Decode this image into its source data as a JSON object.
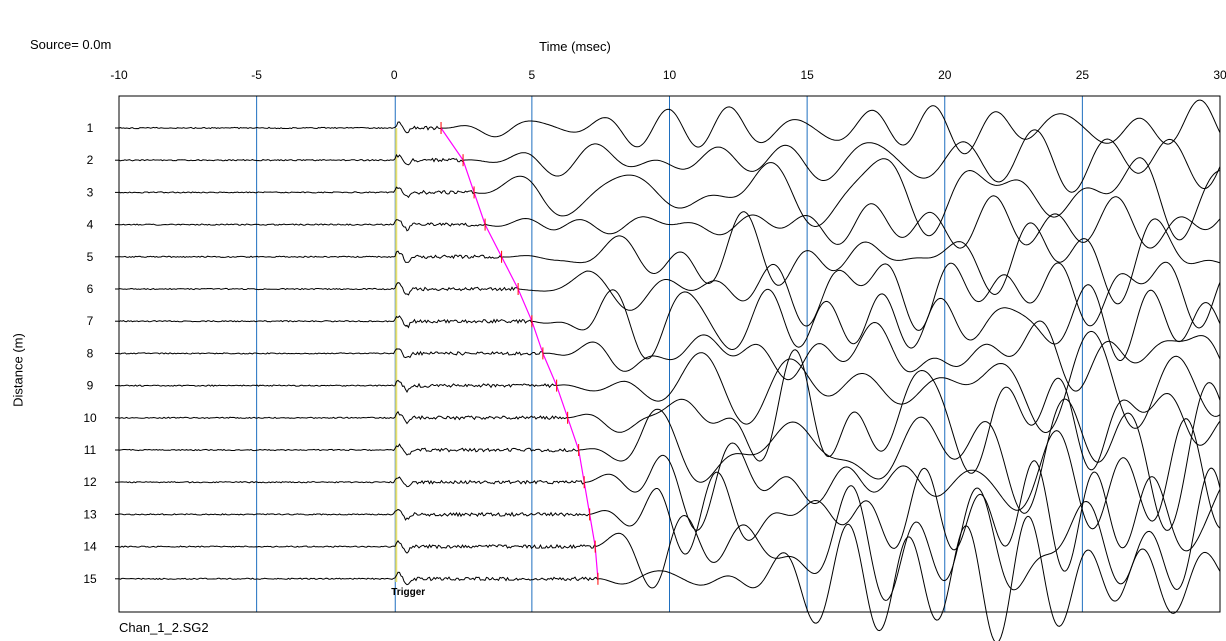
{
  "header": {
    "source_text": "Source=  0.0m"
  },
  "footer": {
    "file_name": "Chan_1_2.SG2"
  },
  "colors": {
    "trace": "#000000",
    "grid_line": "#1f6fbf",
    "trigger_line": "#e8e070",
    "first_break_pick": "#ff00ff",
    "pick_tick": "#ff0000"
  },
  "chart_data": {
    "type": "line",
    "subtype": "seismic-wiggle-traces",
    "title": "",
    "xlabel": "Time (msec)",
    "ylabel": "Distance (m)",
    "xlim": [
      -10,
      30
    ],
    "ylim": [
      0,
      16
    ],
    "x_ticks": [
      -10,
      -5,
      0,
      5,
      10,
      15,
      20,
      25,
      30
    ],
    "vertical_gridlines": [
      -5,
      0,
      5,
      10,
      15,
      20,
      25
    ],
    "y_ticks": [
      1,
      2,
      3,
      4,
      5,
      6,
      7,
      8,
      9,
      10,
      11,
      12,
      13,
      14,
      15
    ],
    "y_axis_inverted": true,
    "grid": true,
    "trigger": {
      "time_ms": 0,
      "label": "Trigger"
    },
    "traces": [
      {
        "distance_m": 1,
        "first_break_ms": 1.7
      },
      {
        "distance_m": 2,
        "first_break_ms": 2.5
      },
      {
        "distance_m": 3,
        "first_break_ms": 2.9
      },
      {
        "distance_m": 4,
        "first_break_ms": 3.3
      },
      {
        "distance_m": 5,
        "first_break_ms": 3.9
      },
      {
        "distance_m": 6,
        "first_break_ms": 4.5
      },
      {
        "distance_m": 7,
        "first_break_ms": 5.0
      },
      {
        "distance_m": 8,
        "first_break_ms": 5.4
      },
      {
        "distance_m": 9,
        "first_break_ms": 5.9
      },
      {
        "distance_m": 10,
        "first_break_ms": 6.3
      },
      {
        "distance_m": 11,
        "first_break_ms": 6.7
      },
      {
        "distance_m": 12,
        "first_break_ms": 6.9
      },
      {
        "distance_m": 13,
        "first_break_ms": 7.1
      },
      {
        "distance_m": 14,
        "first_break_ms": 7.3
      },
      {
        "distance_m": 15,
        "first_break_ms": 7.4
      }
    ]
  }
}
